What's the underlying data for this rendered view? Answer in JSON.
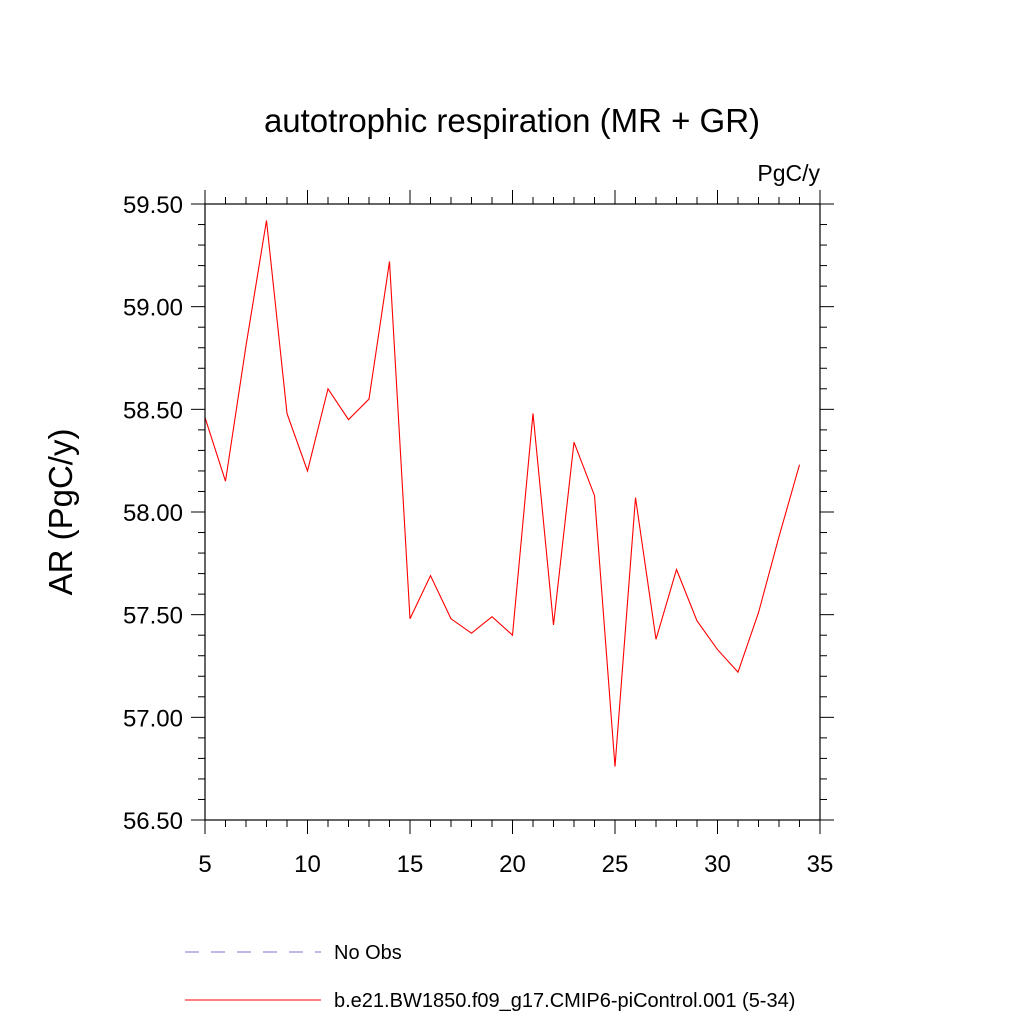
{
  "chart_data": {
    "type": "line",
    "title": "autotrophic respiration (MR + GR)",
    "units_label": "PgC/y",
    "xlabel": "",
    "ylabel": "AR  (PgC/y)",
    "xlim": [
      5,
      35
    ],
    "ylim": [
      56.5,
      59.5
    ],
    "x_ticks": [
      5,
      10,
      15,
      20,
      25,
      30,
      35
    ],
    "y_ticks": [
      56.5,
      57.0,
      57.5,
      58.0,
      58.5,
      59.0,
      59.5
    ],
    "y_tick_labels": [
      "56.50",
      "57.00",
      "57.50",
      "58.00",
      "58.50",
      "59.00",
      "59.50"
    ],
    "grid": false,
    "legend_position": "bottom",
    "series": [
      {
        "name": "No Obs",
        "color": "#7b72d6",
        "style": "dashed",
        "x": [],
        "y": []
      },
      {
        "name": "b.e21.BW1850.f09_g17.CMIP6-piControl.001 (5-34)",
        "color": "#ff0000",
        "style": "solid",
        "x": [
          5,
          6,
          7,
          8,
          9,
          10,
          11,
          12,
          13,
          14,
          15,
          16,
          17,
          18,
          19,
          20,
          21,
          22,
          23,
          24,
          25,
          26,
          27,
          28,
          29,
          30,
          31,
          32,
          33,
          34
        ],
        "y": [
          58.46,
          58.15,
          58.81,
          59.42,
          58.48,
          58.2,
          58.6,
          58.45,
          58.55,
          59.22,
          57.48,
          57.69,
          57.48,
          57.41,
          57.49,
          57.4,
          58.48,
          57.45,
          58.34,
          58.08,
          56.76,
          58.07,
          57.38,
          57.72,
          57.47,
          57.33,
          57.22,
          57.51,
          57.88,
          58.23
        ]
      }
    ]
  }
}
